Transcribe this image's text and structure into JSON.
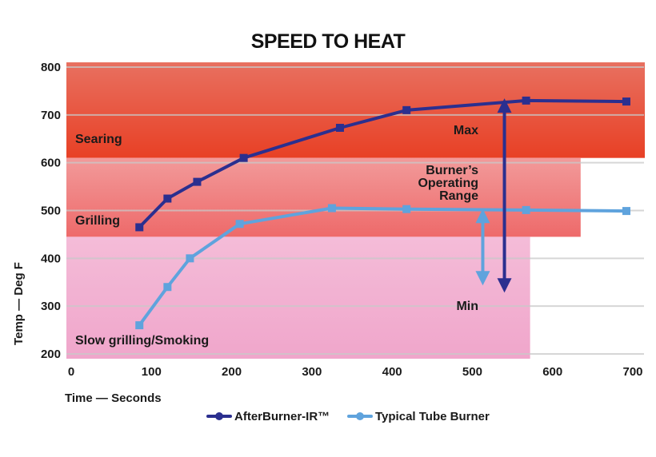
{
  "chart_data": {
    "type": "line",
    "title": "SPEED TO HEAT",
    "xlabel": "Time — Seconds",
    "ylabel": "Temp — Deg F",
    "xlim": [
      0,
      700
    ],
    "ylim": [
      200,
      800
    ],
    "xticks": [
      0,
      100,
      200,
      300,
      400,
      500,
      600,
      700
    ],
    "yticks": [
      200,
      300,
      400,
      500,
      600,
      700,
      800
    ],
    "grid": true,
    "legend_position": "bottom-center",
    "series": [
      {
        "name": "AfterBurner-IR™",
        "color": "#2b2f8f",
        "x": [
          85,
          120,
          157,
          215,
          335,
          418,
          567,
          692
        ],
        "y": [
          465,
          525,
          560,
          610,
          673,
          710,
          730,
          728
        ]
      },
      {
        "name": "Typical Tube Burner",
        "color": "#5fa3dd",
        "x": [
          85,
          120,
          148,
          210,
          325,
          418,
          567,
          692
        ],
        "y": [
          260,
          340,
          400,
          472,
          505,
          503,
          501,
          499
        ]
      }
    ],
    "zones": [
      {
        "label": "Searing",
        "x_end": 715,
        "y_from": 610,
        "y_to": 810,
        "color_top": "#e87060",
        "color_bottom": "#e84025"
      },
      {
        "label": "Grilling",
        "x_end": 635,
        "y_from": 445,
        "y_to": 610,
        "color_top": "#f29a9a",
        "color_bottom": "#ee6a6a"
      },
      {
        "label": "Slow grilling/Smoking",
        "x_end": 572,
        "y_from": 190,
        "y_to": 445,
        "color_top": "#f4b8d6",
        "color_bottom": "#f0a8cc"
      }
    ],
    "annotations": {
      "max_label": "Max",
      "range_label_lines": [
        "Burner’s",
        "Operating",
        "Range"
      ],
      "min_label": "Min",
      "ir_range": {
        "x": 540,
        "y_top": 728,
        "y_bottom": 335,
        "color": "#2b2f8f"
      },
      "tube_range": {
        "x": 513,
        "y_top": 497,
        "y_bottom": 350,
        "color": "#5fa3dd"
      }
    }
  }
}
